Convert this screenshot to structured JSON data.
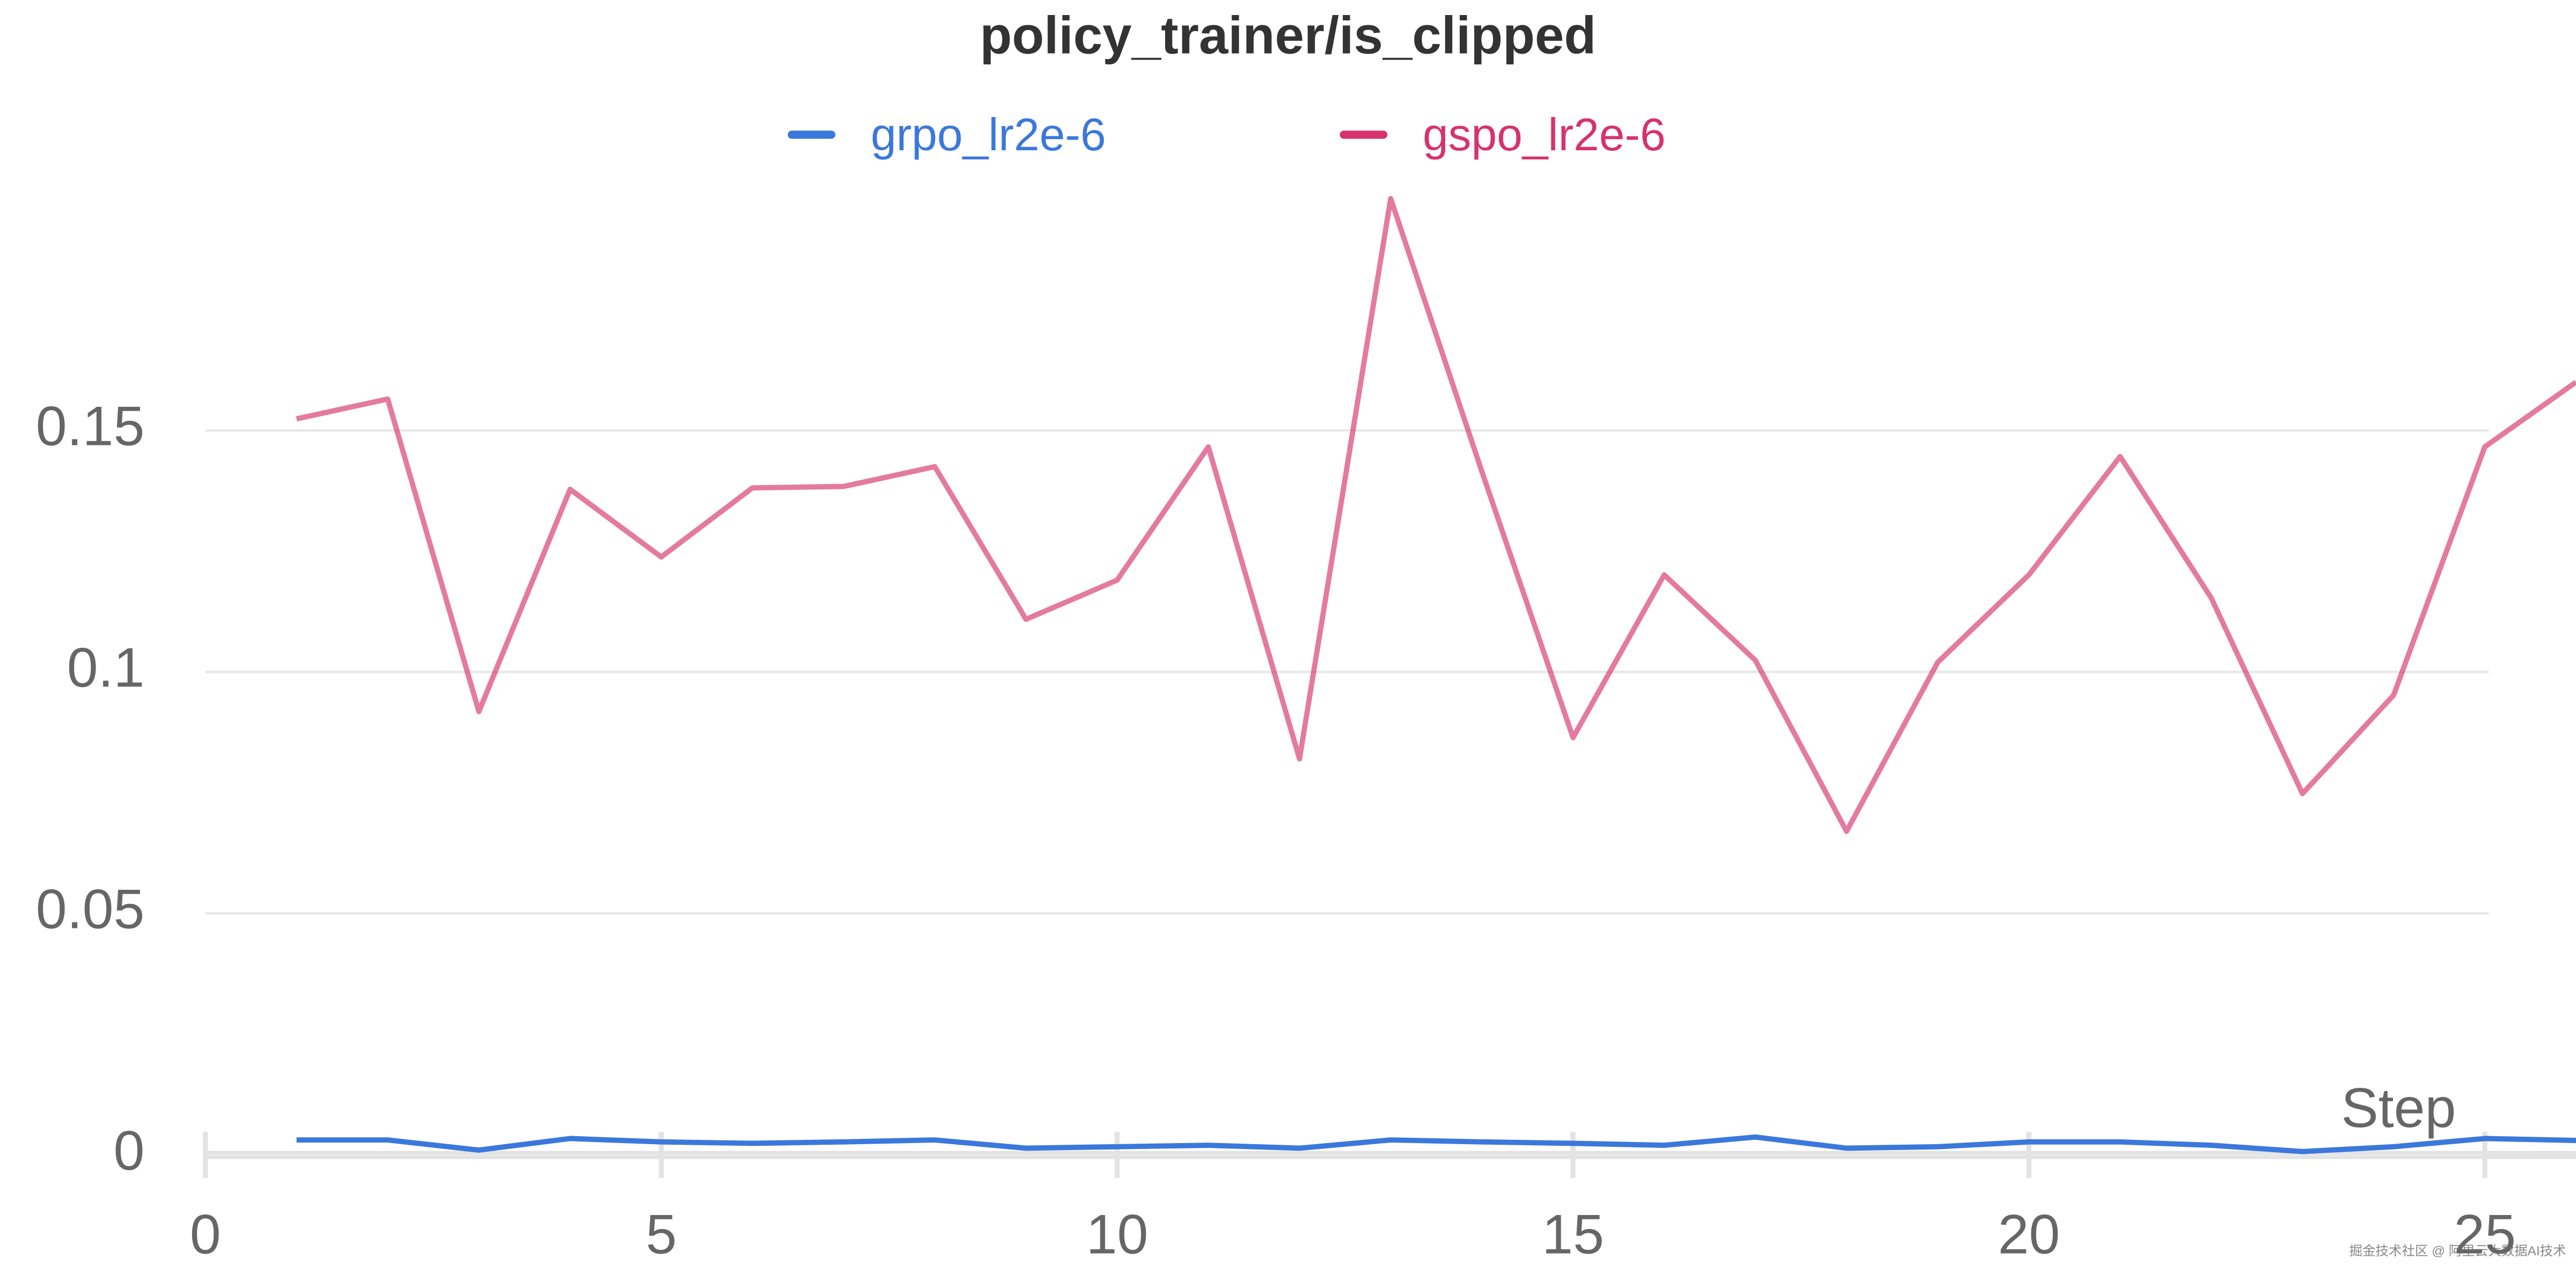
{
  "chart_data": {
    "type": "line",
    "title": "policy_trainer/is_clipped",
    "x_label": "Step",
    "x": [
      1,
      2,
      3,
      4,
      5,
      6,
      7,
      8,
      9,
      10,
      11,
      12,
      13,
      14,
      15,
      16,
      17,
      18,
      19,
      20,
      21,
      22,
      23,
      24,
      25,
      26
    ],
    "series": [
      {
        "name": "grpo_lr2e-6",
        "color": "#3b78dc",
        "values": [
          0.0031,
          0.0031,
          0.001,
          0.0034,
          0.0027,
          0.0024,
          0.0027,
          0.0031,
          0.0014,
          0.0017,
          0.002,
          0.0014,
          0.0031,
          0.0027,
          0.0024,
          0.002,
          0.0037,
          0.0014,
          0.0017,
          0.0027,
          0.0027,
          0.002,
          0.0007,
          0.0017,
          0.0034,
          0.003
        ]
      },
      {
        "name": "gspo_lr2e-6",
        "color": "#d6336c",
        "values": [
          0.1524,
          0.1565,
          0.0918,
          0.1378,
          0.1238,
          0.1381,
          0.1384,
          0.1425,
          0.1109,
          0.119,
          0.1466,
          0.082,
          0.198,
          0.1415,
          0.0864,
          0.1201,
          0.1024,
          0.067,
          0.102,
          0.1201,
          0.1446,
          0.1153,
          0.0748,
          0.0952,
          0.1466,
          0.16
        ]
      }
    ],
    "xlim": [
      0,
      26
    ],
    "xticks": [
      0,
      5,
      10,
      15,
      20,
      25
    ],
    "ylim": [
      0,
      0.2
    ],
    "yticks": [
      0,
      0.05,
      0.1,
      0.15
    ],
    "grid": true,
    "legend": "top",
    "watermark": "掘金技术社区 @ 阿里云大数据AI技术"
  }
}
